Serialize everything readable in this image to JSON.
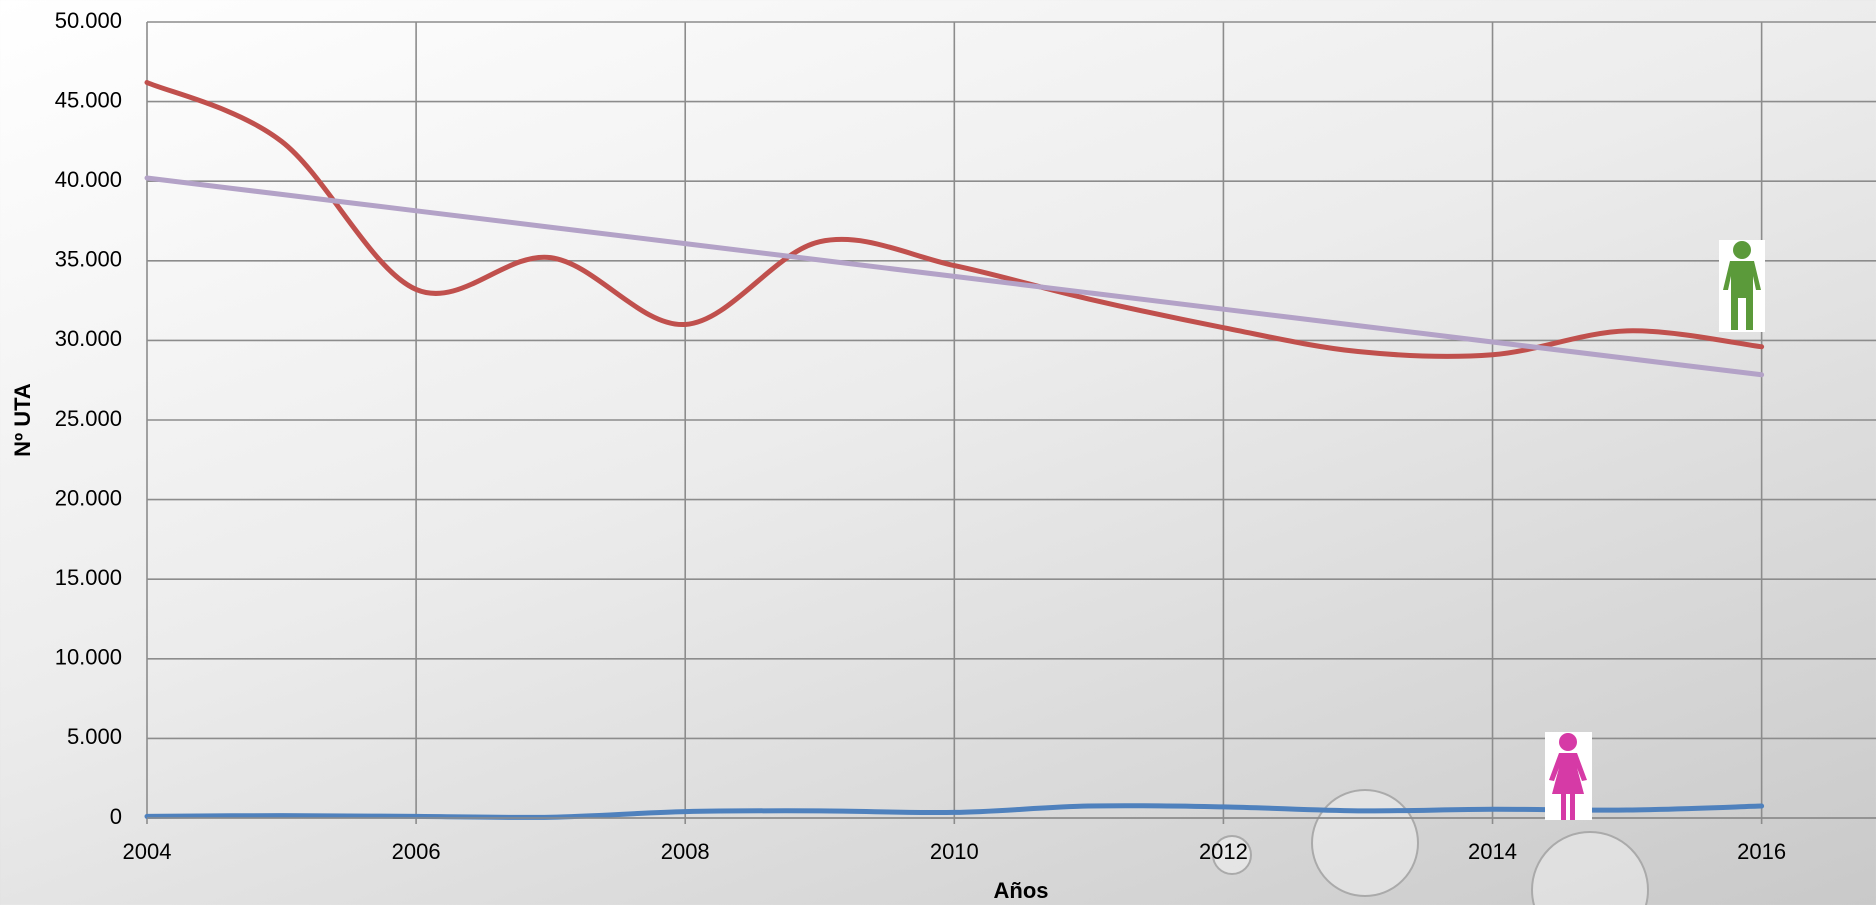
{
  "chart_data": {
    "type": "line",
    "x_label": "Años",
    "y_label": "Nº UTA",
    "x": [
      2004,
      2005,
      2006,
      2007,
      2008,
      2009,
      2010,
      2011,
      2012,
      2013,
      2014,
      2015,
      2016
    ],
    "series": [
      {
        "color": "#c0504d",
        "values": [
          46200,
          42500,
          33200,
          35200,
          31000,
          36200,
          34700,
          32600,
          30800,
          29300,
          29100,
          30600,
          29600
        ]
      },
      {
        "color": "#b3a2c7",
        "values": [
          40200,
          39170,
          38140,
          37110,
          36080,
          35050,
          34020,
          32990,
          31960,
          30930,
          29900,
          28870,
          27840
        ]
      },
      {
        "color": "#4f81bd",
        "values": [
          100,
          150,
          100,
          50,
          400,
          450,
          350,
          750,
          700,
          450,
          550,
          500,
          750
        ]
      }
    ],
    "xlim": [
      2004,
      2016.85
    ],
    "xticks": [
      2004,
      2006,
      2008,
      2010,
      2012,
      2014,
      2016
    ],
    "ylim": [
      0,
      50000
    ],
    "yticks": [
      0,
      {
        "value": 5000,
        "label": "5.000"
      },
      {
        "value": 10000,
        "label": "10.000"
      },
      {
        "value": 15000,
        "label": "15.000"
      },
      {
        "value": 20000,
        "label": "20.000"
      },
      {
        "value": 25000,
        "label": "25.000"
      },
      {
        "value": 30000,
        "label": "30.000"
      },
      {
        "value": 35000,
        "label": "35.000"
      },
      {
        "value": 40000,
        "label": "40.000"
      },
      {
        "value": 45000,
        "label": "45.000"
      },
      {
        "value": 50000,
        "label": "50.000"
      }
    ],
    "grid": true
  }
}
